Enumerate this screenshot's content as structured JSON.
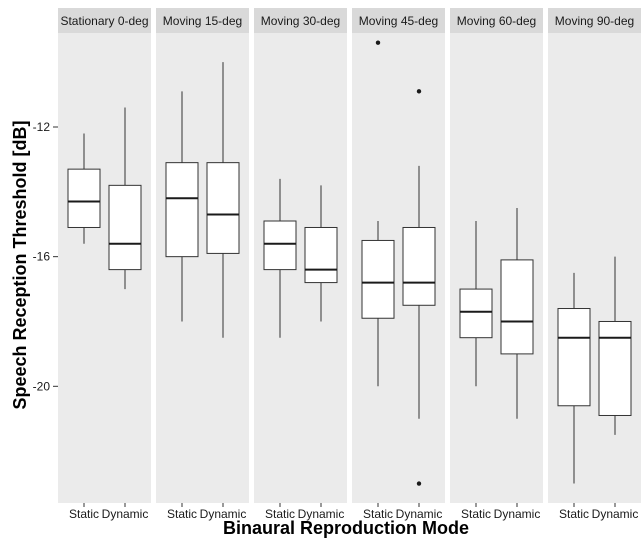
{
  "chart_data": {
    "type": "box",
    "xlabel": "Binaural Reproduction Mode",
    "ylabel": "Speech Reception Threshold [dB]",
    "categories": [
      "Static",
      "Dynamic"
    ],
    "y_ticks": [
      -12,
      -16,
      -20
    ],
    "y_tick_labels": [
      "-12",
      "-16",
      "-20"
    ],
    "ylim": [
      -23.6,
      -9.1
    ],
    "y_direction": "increasing upward",
    "grid": false,
    "facet_strip_color": "#d9d9d9",
    "panel_background": "#ebebeb",
    "box_fill": "#ffffff",
    "line_color": "#333333",
    "facets": [
      {
        "label": "Stationary 0-deg",
        "boxes": [
          {
            "category": "Static",
            "whisker_low": -15.6,
            "q1": -15.1,
            "median": -14.3,
            "q3": -13.3,
            "whisker_high": -12.2,
            "outliers": []
          },
          {
            "category": "Dynamic",
            "whisker_low": -17.0,
            "q1": -16.4,
            "median": -15.6,
            "q3": -13.8,
            "whisker_high": -11.4,
            "outliers": []
          }
        ]
      },
      {
        "label": "Moving 15-deg",
        "boxes": [
          {
            "category": "Static",
            "whisker_low": -18.0,
            "q1": -16.0,
            "median": -14.2,
            "q3": -13.1,
            "whisker_high": -10.9,
            "outliers": []
          },
          {
            "category": "Dynamic",
            "whisker_low": -18.5,
            "q1": -15.9,
            "median": -14.7,
            "q3": -13.1,
            "whisker_high": -10.0,
            "outliers": []
          }
        ]
      },
      {
        "label": "Moving 30-deg",
        "boxes": [
          {
            "category": "Static",
            "whisker_low": -18.5,
            "q1": -16.4,
            "median": -15.6,
            "q3": -14.9,
            "whisker_high": -13.6,
            "outliers": []
          },
          {
            "category": "Dynamic",
            "whisker_low": -18.0,
            "q1": -16.8,
            "median": -16.4,
            "q3": -15.1,
            "whisker_high": -13.8,
            "outliers": []
          }
        ]
      },
      {
        "label": "Moving 45-deg",
        "boxes": [
          {
            "category": "Static",
            "whisker_low": -20.0,
            "q1": -17.9,
            "median": -16.8,
            "q3": -15.5,
            "whisker_high": -14.9,
            "outliers": [
              -9.4
            ]
          },
          {
            "category": "Dynamic",
            "whisker_low": -21.0,
            "q1": -17.5,
            "median": -16.8,
            "q3": -15.1,
            "whisker_high": -13.2,
            "outliers": [
              -10.9,
              -23.0
            ]
          }
        ]
      },
      {
        "label": "Moving 60-deg",
        "boxes": [
          {
            "category": "Static",
            "whisker_low": -20.0,
            "q1": -18.5,
            "median": -17.7,
            "q3": -17.0,
            "whisker_high": -14.9,
            "outliers": []
          },
          {
            "category": "Dynamic",
            "whisker_low": -21.0,
            "q1": -19.0,
            "median": -18.0,
            "q3": -16.1,
            "whisker_high": -14.5,
            "outliers": []
          }
        ]
      },
      {
        "label": "Moving 90-deg",
        "boxes": [
          {
            "category": "Static",
            "whisker_low": -23.0,
            "q1": -20.6,
            "median": -18.5,
            "q3": -17.6,
            "whisker_high": -16.5,
            "outliers": []
          },
          {
            "category": "Dynamic",
            "whisker_low": -21.5,
            "q1": -20.9,
            "median": -18.5,
            "q3": -18.0,
            "whisker_high": -16.0,
            "outliers": []
          }
        ]
      }
    ]
  }
}
